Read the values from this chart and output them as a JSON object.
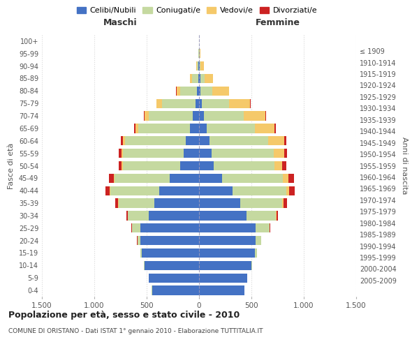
{
  "age_groups": [
    "0-4",
    "5-9",
    "10-14",
    "15-19",
    "20-24",
    "25-29",
    "30-34",
    "35-39",
    "40-44",
    "45-49",
    "50-54",
    "55-59",
    "60-64",
    "65-69",
    "70-74",
    "75-79",
    "80-84",
    "85-89",
    "90-94",
    "95-99",
    "100+"
  ],
  "birth_years": [
    "2005-2009",
    "2000-2004",
    "1995-1999",
    "1990-1994",
    "1985-1989",
    "1980-1984",
    "1975-1979",
    "1970-1974",
    "1965-1969",
    "1960-1964",
    "1955-1959",
    "1950-1954",
    "1945-1949",
    "1940-1944",
    "1935-1939",
    "1930-1934",
    "1925-1929",
    "1920-1924",
    "1915-1919",
    "1910-1914",
    "≤ 1909"
  ],
  "males": {
    "celibi": [
      450,
      480,
      520,
      550,
      560,
      560,
      480,
      430,
      380,
      280,
      180,
      150,
      130,
      90,
      60,
      35,
      20,
      10,
      5,
      3,
      2
    ],
    "coniugati": [
      1,
      2,
      5,
      10,
      30,
      80,
      200,
      340,
      470,
      530,
      550,
      580,
      580,
      490,
      420,
      320,
      160,
      60,
      15,
      3,
      0
    ],
    "vedovi": [
      0,
      0,
      0,
      0,
      0,
      0,
      1,
      2,
      3,
      5,
      8,
      10,
      20,
      30,
      40,
      50,
      35,
      20,
      8,
      2,
      0
    ],
    "divorziati": [
      0,
      0,
      0,
      1,
      2,
      5,
      15,
      25,
      40,
      45,
      30,
      25,
      18,
      12,
      10,
      5,
      2,
      0,
      0,
      0,
      0
    ]
  },
  "females": {
    "nubili": [
      430,
      460,
      500,
      530,
      540,
      540,
      450,
      390,
      320,
      220,
      140,
      120,
      100,
      70,
      45,
      25,
      15,
      10,
      5,
      3,
      2
    ],
    "coniugate": [
      1,
      3,
      8,
      20,
      50,
      130,
      280,
      400,
      510,
      580,
      580,
      590,
      560,
      460,
      380,
      260,
      110,
      40,
      10,
      2,
      0
    ],
    "vedove": [
      0,
      0,
      0,
      1,
      2,
      4,
      10,
      18,
      30,
      50,
      70,
      100,
      150,
      190,
      210,
      200,
      160,
      80,
      30,
      8,
      1
    ],
    "divorziate": [
      0,
      0,
      0,
      1,
      2,
      6,
      15,
      30,
      50,
      55,
      40,
      30,
      20,
      12,
      8,
      5,
      2,
      1,
      0,
      0,
      0
    ]
  },
  "colors": {
    "celibi": "#4472C4",
    "coniugati": "#c5d9a0",
    "vedovi": "#f5c96a",
    "divorziati": "#cc2222"
  },
  "xlim": 1500,
  "title": "Popolazione per età, sesso e stato civile - 2010",
  "subtitle": "COMUNE DI ORISTANO - Dati ISTAT 1° gennaio 2010 - Elaborazione TUTTITALIA.IT",
  "xlabel_left": "Maschi",
  "xlabel_right": "Femmine",
  "ylabel_left": "Fasce di età",
  "ylabel_right": "Anni di nascita",
  "legend_labels": [
    "Celibi/Nubili",
    "Coniugati/e",
    "Vedovi/e",
    "Divorziati/e"
  ],
  "xticks": [
    -1500,
    -1000,
    -500,
    0,
    500,
    1000,
    1500
  ],
  "xtick_labels": [
    "1.500",
    "1.000",
    "500",
    "0",
    "500",
    "1.000",
    "1.500"
  ]
}
